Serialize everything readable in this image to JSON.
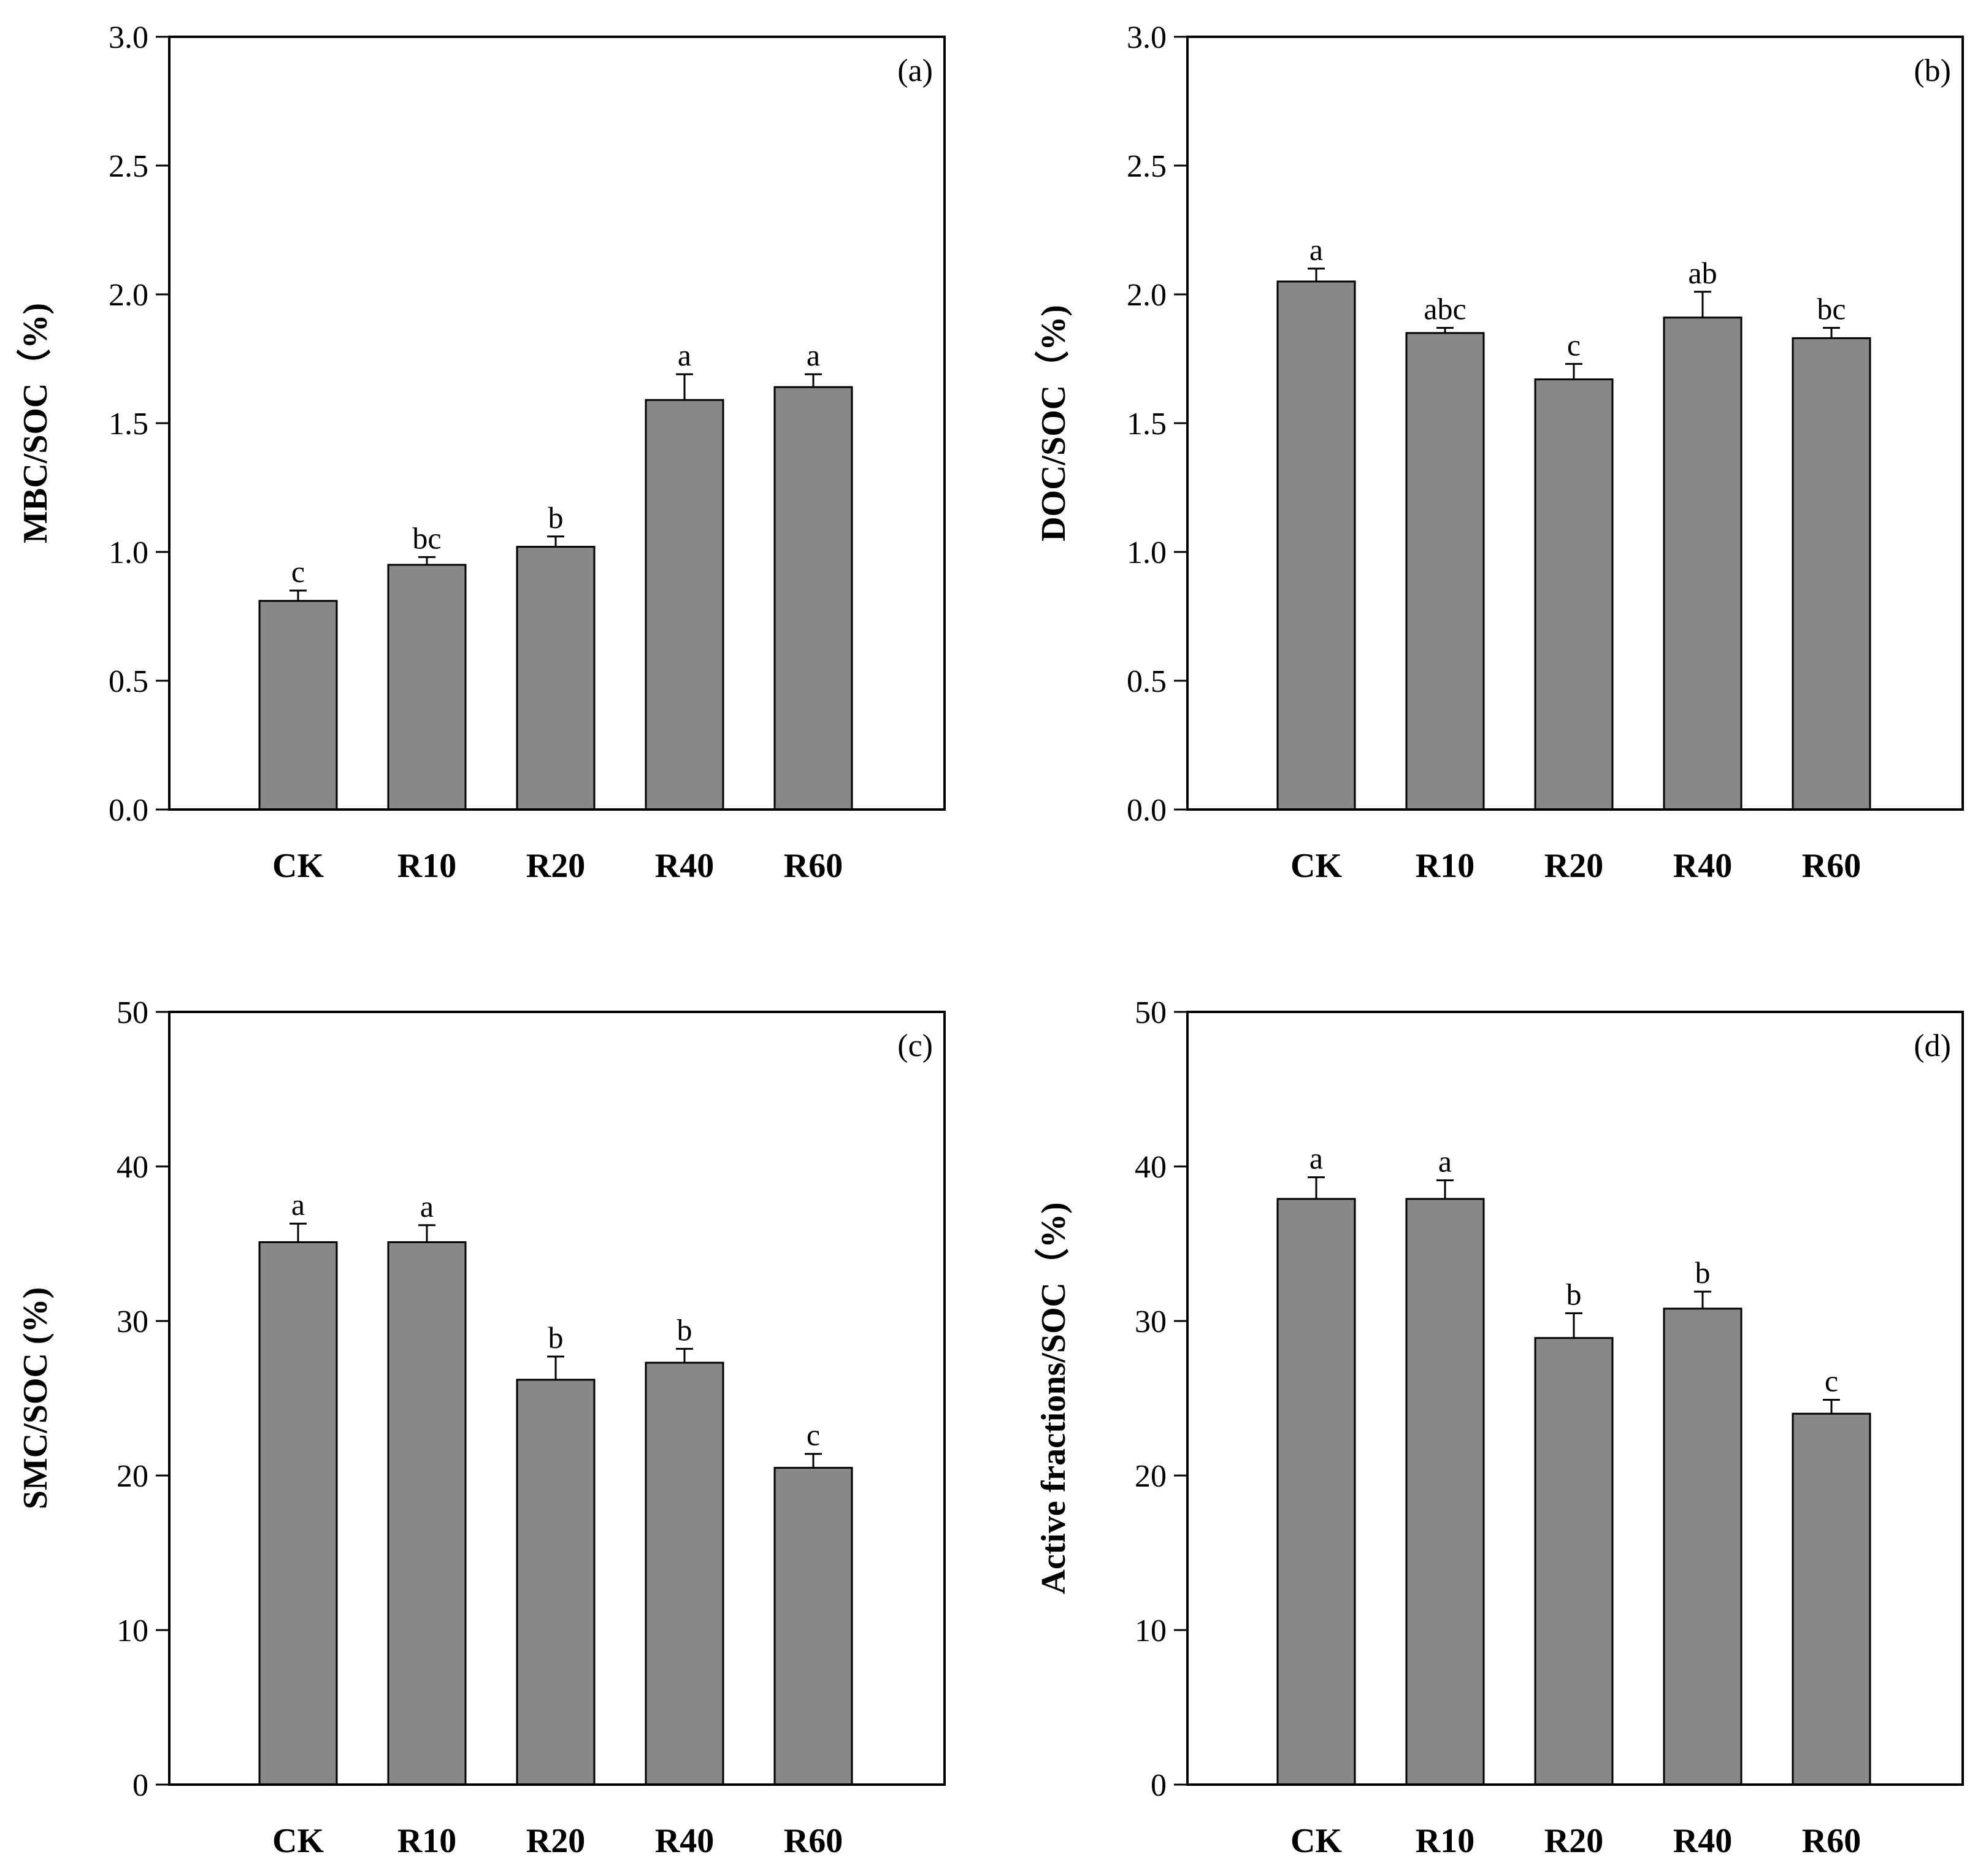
{
  "figure": {
    "background": "#ffffff"
  },
  "colors": {
    "bar_fill": "#888888",
    "bar_stroke": "#000000",
    "axis": "#000000"
  },
  "chart_data": [
    {
      "type": "bar",
      "panel_label": "(a)",
      "ylabel": "MBC/SOC（%)",
      "categories": [
        "CK",
        "R10",
        "R20",
        "R40",
        "R60"
      ],
      "values": [
        0.81,
        0.95,
        1.02,
        1.59,
        1.64
      ],
      "errors": [
        0.04,
        0.03,
        0.04,
        0.1,
        0.05
      ],
      "significance": [
        "c",
        "bc",
        "b",
        "a",
        "a"
      ],
      "ylim": [
        0,
        3.0
      ],
      "yticks": [
        0,
        0.5,
        1.0,
        1.5,
        2.0,
        2.5,
        3.0
      ],
      "ytick_labels": [
        "0.0",
        "0.5",
        "1.0",
        "1.5",
        "2.0",
        "2.5",
        "3.0"
      ]
    },
    {
      "type": "bar",
      "panel_label": "(b)",
      "ylabel": "DOC/SOC（%)",
      "categories": [
        "CK",
        "R10",
        "R20",
        "R40",
        "R60"
      ],
      "values": [
        2.05,
        1.85,
        1.67,
        1.91,
        1.83
      ],
      "errors": [
        0.05,
        0.02,
        0.06,
        0.1,
        0.04
      ],
      "significance": [
        "a",
        "abc",
        "c",
        "ab",
        "bc"
      ],
      "ylim": [
        0,
        3.0
      ],
      "yticks": [
        0,
        0.5,
        1.0,
        1.5,
        2.0,
        2.5,
        3.0
      ],
      "ytick_labels": [
        "0.0",
        "0.5",
        "1.0",
        "1.5",
        "2.0",
        "2.5",
        "3.0"
      ]
    },
    {
      "type": "bar",
      "panel_label": "(c)",
      "ylabel": "SMC/SOC (%)",
      "categories": [
        "CK",
        "R10",
        "R20",
        "R40",
        "R60"
      ],
      "values": [
        35.1,
        35.1,
        26.2,
        27.3,
        20.5
      ],
      "errors": [
        1.2,
        1.1,
        1.5,
        0.9,
        0.9
      ],
      "significance": [
        "a",
        "a",
        "b",
        "b",
        "c"
      ],
      "ylim": [
        0,
        50
      ],
      "yticks": [
        0,
        10,
        20,
        30,
        40,
        50
      ],
      "ytick_labels": [
        "0",
        "10",
        "20",
        "30",
        "40",
        "50"
      ]
    },
    {
      "type": "bar",
      "panel_label": "(d)",
      "ylabel": "Active fractions/SOC（%)",
      "categories": [
        "CK",
        "R10",
        "R20",
        "R40",
        "R60"
      ],
      "values": [
        37.9,
        37.9,
        28.9,
        30.8,
        24.0
      ],
      "errors": [
        1.4,
        1.2,
        1.6,
        1.1,
        0.9
      ],
      "significance": [
        "a",
        "a",
        "b",
        "b",
        "c"
      ],
      "ylim": [
        0,
        50
      ],
      "yticks": [
        0,
        10,
        20,
        30,
        40,
        50
      ],
      "ytick_labels": [
        "0",
        "10",
        "20",
        "30",
        "40",
        "50"
      ]
    }
  ]
}
